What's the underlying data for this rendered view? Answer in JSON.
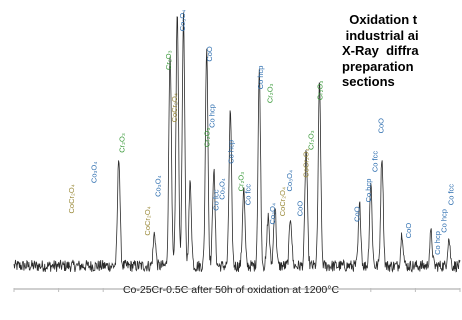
{
  "side_text": {
    "line1": "  Oxidation t",
    "line2": " industrial ai",
    "line3": "X-Ray  diffra",
    "line4": "preparation",
    "line5": "sections"
  },
  "chart_data": {
    "type": "line",
    "title": "",
    "caption": "Co-25Cr-0.5C after 50h of oxidation at 1200°C",
    "xlabel": "",
    "ylabel": "",
    "xlim": [
      0,
      100
    ],
    "ylim": [
      0,
      100
    ],
    "baseline": 8,
    "noise_amplitude": 2.2,
    "peaks": [
      {
        "x": 23.5,
        "height": 40
      },
      {
        "x": 31.5,
        "height": 12
      },
      {
        "x": 35.0,
        "height": 78
      },
      {
        "x": 36.6,
        "height": 92
      },
      {
        "x": 38.0,
        "height": 90
      },
      {
        "x": 39.5,
        "height": 30
      },
      {
        "x": 43.2,
        "height": 80
      },
      {
        "x": 44.8,
        "height": 35
      },
      {
        "x": 48.5,
        "height": 56
      },
      {
        "x": 51.5,
        "height": 28
      },
      {
        "x": 55.0,
        "height": 70
      },
      {
        "x": 57.0,
        "height": 18
      },
      {
        "x": 58.5,
        "height": 22
      },
      {
        "x": 62.0,
        "height": 18
      },
      {
        "x": 65.5,
        "height": 42
      },
      {
        "x": 68.5,
        "height": 66
      },
      {
        "x": 77.5,
        "height": 22
      },
      {
        "x": 80.0,
        "height": 30
      },
      {
        "x": 82.5,
        "height": 40
      },
      {
        "x": 87.0,
        "height": 12
      },
      {
        "x": 93.5,
        "height": 12
      },
      {
        "x": 97.5,
        "height": 10
      }
    ],
    "annotations": [
      {
        "text": "CoCr₂O₄",
        "x": 13.5,
        "y": 27,
        "color": "#9a8a3a"
      },
      {
        "text": "Co₃O₄",
        "x": 18.5,
        "y": 38,
        "color": "#2f6fb0"
      },
      {
        "text": "Cr₂O₃",
        "x": 24.8,
        "y": 49,
        "color": "#3a9a3a"
      },
      {
        "text": "CoCr₂O₄",
        "x": 30.5,
        "y": 19,
        "color": "#9a8a3a"
      },
      {
        "text": "Co₃O₄",
        "x": 32.8,
        "y": 33,
        "color": "#2f6fb0"
      },
      {
        "text": "Cr₂O₃",
        "x": 35.2,
        "y": 79,
        "color": "#3a9a3a"
      },
      {
        "text": "CoCr₂O₄",
        "x": 36.6,
        "y": 60,
        "color": "#9a8a3a"
      },
      {
        "text": "Co₃O₄",
        "x": 38.3,
        "y": 93,
        "color": "#2f6fb0"
      },
      {
        "text": "CoO",
        "x": 39.6,
        "y": 105,
        "color": "#2f6fb0"
      },
      {
        "text": "Cr₂O₃",
        "x": 40.2,
        "y": 118,
        "color": "#3a9a3a"
      },
      {
        "text": "Cr₂O₃",
        "x": 43.8,
        "y": 51,
        "color": "#3a9a3a"
      },
      {
        "text": "CoO",
        "x": 44.4,
        "y": 82,
        "color": "#2f6fb0"
      },
      {
        "text": "Co hcp",
        "x": 45.0,
        "y": 58,
        "color": "#2f6fb0"
      },
      {
        "text": "Co fcc",
        "x": 45.8,
        "y": 28,
        "color": "#2f6fb0"
      },
      {
        "text": "Co₃O₄",
        "x": 47.2,
        "y": 32,
        "color": "#2f6fb0"
      },
      {
        "text": "Co hcp",
        "x": 49.2,
        "y": 45,
        "color": "#2f6fb0"
      },
      {
        "text": "Cr₂O₃",
        "x": 51.5,
        "y": 35,
        "color": "#3a9a3a"
      },
      {
        "text": "Co fcc",
        "x": 53.0,
        "y": 30,
        "color": "#2f6fb0"
      },
      {
        "text": "Co hcp",
        "x": 55.8,
        "y": 72,
        "color": "#2f6fb0"
      },
      {
        "text": "Cr₂O₃",
        "x": 58.0,
        "y": 67,
        "color": "#3a9a3a"
      },
      {
        "text": "Co₃O₄",
        "x": 58.5,
        "y": 23,
        "color": "#2f6fb0"
      },
      {
        "text": "CoCr₂O₄",
        "x": 60.8,
        "y": 26,
        "color": "#9a8a3a"
      },
      {
        "text": "Co₃O₄",
        "x": 62.3,
        "y": 35,
        "color": "#2f6fb0"
      },
      {
        "text": "CoO",
        "x": 64.7,
        "y": 26,
        "color": "#2f6fb0"
      },
      {
        "text": "CoCr₂O₄",
        "x": 66.0,
        "y": 40,
        "color": "#9a8a3a"
      },
      {
        "text": "Cr₂O₃",
        "x": 67.2,
        "y": 50,
        "color": "#3a9a3a"
      },
      {
        "text": "Cr₂O₃",
        "x": 69.2,
        "y": 68,
        "color": "#3a9a3a"
      },
      {
        "text": "CoO",
        "x": 77.5,
        "y": 24,
        "color": "#2f6fb0"
      },
      {
        "text": "Co hcp",
        "x": 80.0,
        "y": 31,
        "color": "#2f6fb0"
      },
      {
        "text": "Co fcc",
        "x": 81.5,
        "y": 42,
        "color": "#2f6fb0"
      },
      {
        "text": "CoO",
        "x": 82.8,
        "y": 56,
        "color": "#2f6fb0"
      },
      {
        "text": "CoO",
        "x": 89.0,
        "y": 18,
        "color": "#2f6fb0"
      },
      {
        "text": "Co hcp",
        "x": 95.5,
        "y": 12,
        "color": "#2f6fb0"
      },
      {
        "text": "Co hcp",
        "x": 97.0,
        "y": 20,
        "color": "#2f6fb0"
      },
      {
        "text": "Co fcc",
        "x": 98.5,
        "y": 30,
        "color": "#2f6fb0"
      }
    ]
  }
}
